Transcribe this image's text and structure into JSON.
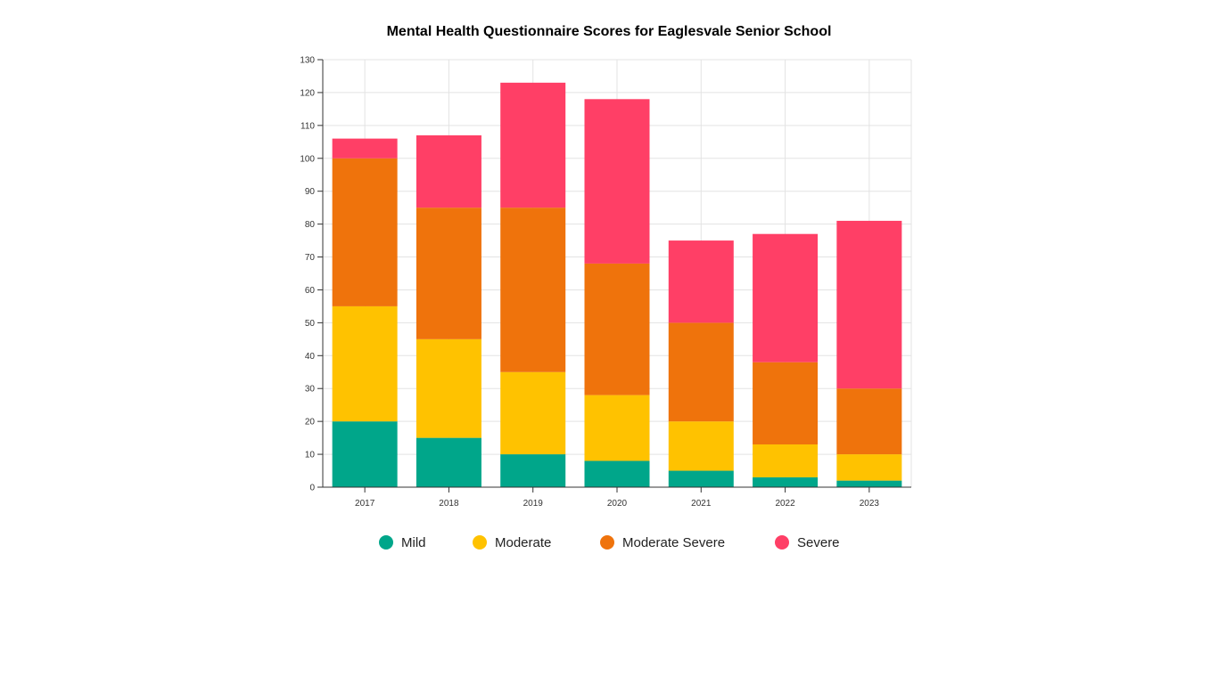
{
  "chart_data": {
    "type": "bar",
    "stacked": true,
    "title": "Mental Health Questionnaire Scores for Eaglesvale Senior School",
    "xlabel": "",
    "ylabel": "",
    "categories": [
      "2017",
      "2018",
      "2019",
      "2020",
      "2021",
      "2022",
      "2023"
    ],
    "ylim": [
      0,
      130
    ],
    "yticks": [
      0,
      10,
      20,
      30,
      40,
      50,
      60,
      70,
      80,
      90,
      100,
      110,
      120,
      130
    ],
    "grid": true,
    "legend_position": "bottom",
    "series": [
      {
        "name": "Mild",
        "color": "#00a68a",
        "values": [
          20,
          15,
          10,
          8,
          5,
          3,
          2
        ]
      },
      {
        "name": "Moderate",
        "color": "#ffc200",
        "values": [
          35,
          30,
          25,
          20,
          15,
          10,
          8
        ]
      },
      {
        "name": "Moderate Severe",
        "color": "#ef730c",
        "values": [
          45,
          40,
          50,
          40,
          30,
          25,
          20
        ]
      },
      {
        "name": "Severe",
        "color": "#ff3f66",
        "values": [
          6,
          22,
          38,
          50,
          25,
          39,
          51
        ]
      }
    ]
  }
}
